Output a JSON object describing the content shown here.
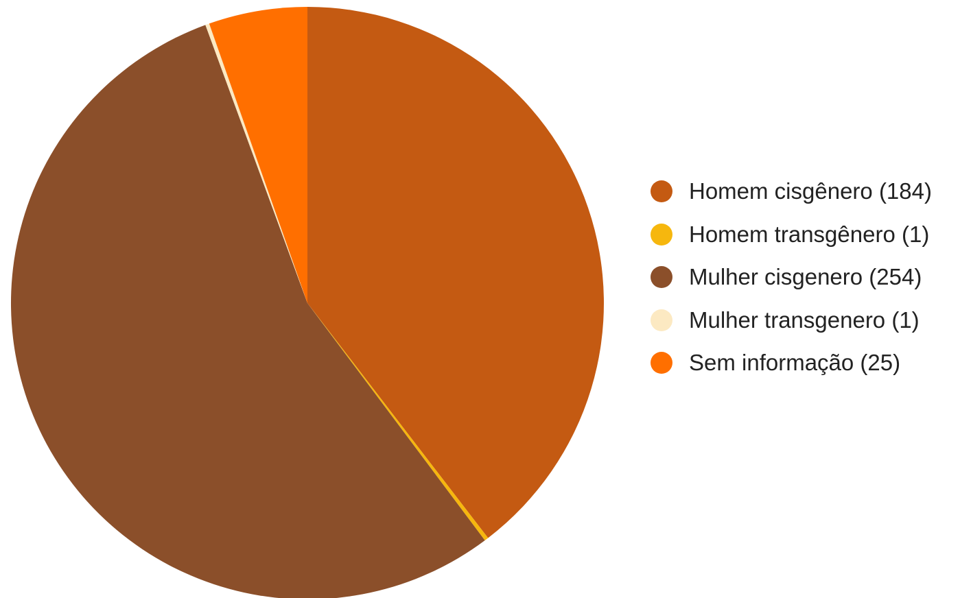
{
  "chart_data": {
    "type": "pie",
    "start_angle_deg": 0,
    "direction": "clockwise",
    "legend_position": "right",
    "slices": [
      {
        "label": "Homem cisgênero (184)",
        "value": 184,
        "color": "#C45A12"
      },
      {
        "label": "Homem transgênero (1)",
        "value": 1,
        "color": "#F6B70E"
      },
      {
        "label": "Mulher cisgenero (254)",
        "value": 254,
        "color": "#8B4F2A"
      },
      {
        "label": "Mulher transgenero (1)",
        "value": 1,
        "color": "#FCE9C2"
      },
      {
        "label": "Sem informação (25)",
        "value": 25,
        "color": "#FF6F00"
      }
    ]
  }
}
